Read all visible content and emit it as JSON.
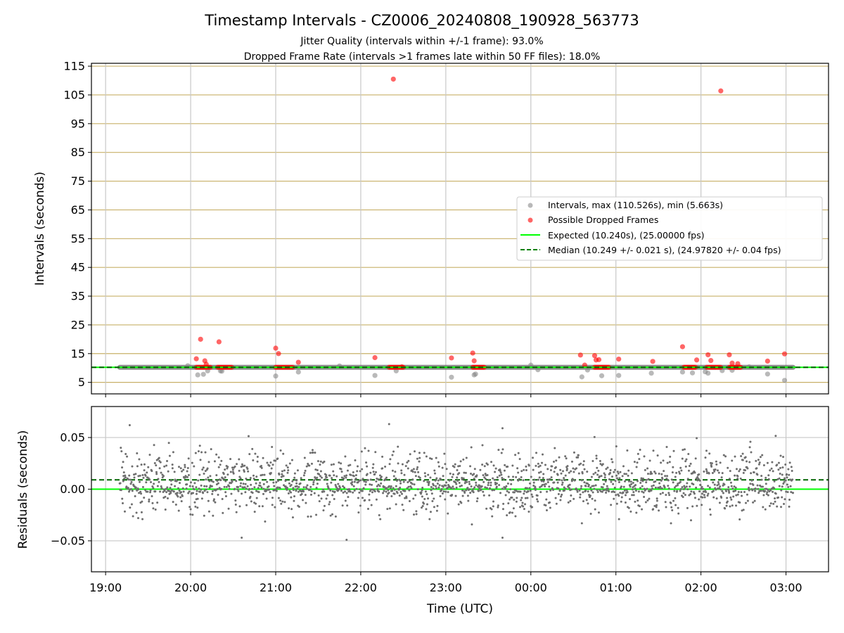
{
  "title": "Timestamp Intervals - CZ0006_20240808_190928_563773",
  "subtitle_lines": [
    "Jitter Quality (intervals within +/-1 frame): 93.0%",
    "Dropped Frame Rate (intervals >1 frames late within 50 FF files): 18.0%"
  ],
  "chart_data": [
    {
      "type": "scatter",
      "panel": "top",
      "ylabel": "Intervals (seconds)",
      "ylim": [
        1,
        116
      ],
      "yticks": [
        5,
        15,
        25,
        35,
        45,
        55,
        65,
        75,
        85,
        95,
        105,
        115
      ],
      "x_range_hours_utc": [
        "18:50",
        "03:30"
      ],
      "xticks_shared": [
        "19:00",
        "20:00",
        "21:00",
        "22:00",
        "23:00",
        "00:00",
        "01:00",
        "02:00",
        "03:00"
      ],
      "grid": "horizontal lines tan at each y tick; vertical gray lines at each x tick",
      "legend_placement": "center-right",
      "legend": [
        {
          "label": "Intervals, max (110.526s), min (5.663s)",
          "marker": "gray-circle"
        },
        {
          "label": "Possible Dropped Frames",
          "marker": "red-circle"
        },
        {
          "label": "Expected (10.240s), (25.00000 fps)",
          "marker": "lime-line"
        },
        {
          "label": "Median (10.249 +/- 0.021 s), (24.97820 +/- 0.04 fps)",
          "marker": "green-dashed-line"
        }
      ],
      "expected_line": 10.24,
      "median_line": 10.249,
      "interval_band": {
        "start": "19:10",
        "end": "03:05",
        "value": 10.24
      },
      "interval_outliers": [
        {
          "x": "19:58",
          "y": 10.8
        },
        {
          "x": "20:05",
          "y": 7.6
        },
        {
          "x": "20:09",
          "y": 7.8
        },
        {
          "x": "20:12",
          "y": 9.0
        },
        {
          "x": "20:21",
          "y": 9.0
        },
        {
          "x": "20:22",
          "y": 8.9
        },
        {
          "x": "21:00",
          "y": 7.2
        },
        {
          "x": "21:16",
          "y": 8.6
        },
        {
          "x": "21:45",
          "y": 10.7
        },
        {
          "x": "22:10",
          "y": 7.4
        },
        {
          "x": "22:25",
          "y": 9.0
        },
        {
          "x": "23:04",
          "y": 6.8
        },
        {
          "x": "23:20",
          "y": 7.6
        },
        {
          "x": "23:21",
          "y": 7.9
        },
        {
          "x": "24:00",
          "y": 11.0
        },
        {
          "x": "24:05",
          "y": 9.4
        },
        {
          "x": "24:36",
          "y": 6.9
        },
        {
          "x": "24:40",
          "y": 9.3
        },
        {
          "x": "24:50",
          "y": 7.3
        },
        {
          "x": "25:02",
          "y": 7.4
        },
        {
          "x": "25:25",
          "y": 8.2
        },
        {
          "x": "25:47",
          "y": 8.6
        },
        {
          "x": "25:54",
          "y": 8.3
        },
        {
          "x": "26:03",
          "y": 8.7
        },
        {
          "x": "26:05",
          "y": 8.2
        },
        {
          "x": "26:15",
          "y": 9.1
        },
        {
          "x": "26:22",
          "y": 9.2
        },
        {
          "x": "26:34",
          "y": 10.4
        },
        {
          "x": "26:47",
          "y": 7.9
        },
        {
          "x": "26:59",
          "y": 5.7
        }
      ],
      "dropped_frames": [
        {
          "x": "20:04",
          "y": 13.2
        },
        {
          "x": "20:07",
          "y": 20.0
        },
        {
          "x": "20:10",
          "y": 12.5
        },
        {
          "x": "20:11",
          "y": 11.3
        },
        {
          "x": "20:20",
          "y": 19.1
        },
        {
          "x": "21:00",
          "y": 16.9
        },
        {
          "x": "21:02",
          "y": 15.0
        },
        {
          "x": "21:16",
          "y": 12.0
        },
        {
          "x": "22:10",
          "y": 13.6
        },
        {
          "x": "22:23",
          "y": 110.5
        },
        {
          "x": "22:29",
          "y": 10.4
        },
        {
          "x": "23:04",
          "y": 13.5
        },
        {
          "x": "23:19",
          "y": 15.2
        },
        {
          "x": "23:20",
          "y": 12.5
        },
        {
          "x": "24:35",
          "y": 14.5
        },
        {
          "x": "24:38",
          "y": 11.0
        },
        {
          "x": "24:45",
          "y": 14.3
        },
        {
          "x": "24:46",
          "y": 12.8
        },
        {
          "x": "24:48",
          "y": 12.9
        },
        {
          "x": "25:02",
          "y": 13.1
        },
        {
          "x": "25:26",
          "y": 12.3
        },
        {
          "x": "25:47",
          "y": 17.4
        },
        {
          "x": "25:57",
          "y": 12.8
        },
        {
          "x": "26:05",
          "y": 14.6
        },
        {
          "x": "26:07",
          "y": 12.6
        },
        {
          "x": "26:14",
          "y": 106.4
        },
        {
          "x": "26:20",
          "y": 14.6
        },
        {
          "x": "26:22",
          "y": 11.7
        },
        {
          "x": "26:26",
          "y": 11.5
        },
        {
          "x": "26:47",
          "y": 12.4
        },
        {
          "x": "26:59",
          "y": 14.9
        }
      ],
      "dropped_frame_clusters": [
        {
          "start": "20:04",
          "end": "20:15",
          "y": 10.24
        },
        {
          "start": "20:19",
          "end": "20:29",
          "y": 10.24
        },
        {
          "start": "21:00",
          "end": "21:12",
          "y": 10.24
        },
        {
          "start": "22:20",
          "end": "22:30",
          "y": 10.24
        },
        {
          "start": "23:19",
          "end": "23:28",
          "y": 10.24
        },
        {
          "start": "24:45",
          "end": "24:55",
          "y": 10.24
        },
        {
          "start": "25:48",
          "end": "25:57",
          "y": 10.24
        },
        {
          "start": "26:04",
          "end": "26:15",
          "y": 10.24
        },
        {
          "start": "26:20",
          "end": "26:28",
          "y": 10.24
        }
      ]
    },
    {
      "type": "scatter",
      "panel": "bottom",
      "ylabel": "Residuals (seconds)",
      "xlabel": "Time (UTC)",
      "ylim": [
        -0.08,
        0.08
      ],
      "yticks": [
        0.05,
        0.0,
        -0.05
      ],
      "ytick_labels": [
        "0.05",
        "0.00",
        "−0.05"
      ],
      "grid": "both axes gray",
      "expected_line": 0.0,
      "median_line": 0.009,
      "residual_points": {
        "start": "19:10",
        "end": "03:05",
        "count": 1900,
        "y_typical_range": [
          -0.035,
          0.05
        ]
      },
      "extremes": [
        {
          "x": "19:17",
          "y": 0.062
        },
        {
          "x": "22:20",
          "y": 0.063
        },
        {
          "x": "23:40",
          "y": 0.059
        },
        {
          "x": "19:23",
          "y": -0.028
        },
        {
          "x": "20:36",
          "y": -0.047
        },
        {
          "x": "21:50",
          "y": -0.049
        },
        {
          "x": "23:40",
          "y": -0.047
        },
        {
          "x": "24:36",
          "y": -0.033
        }
      ]
    }
  ]
}
